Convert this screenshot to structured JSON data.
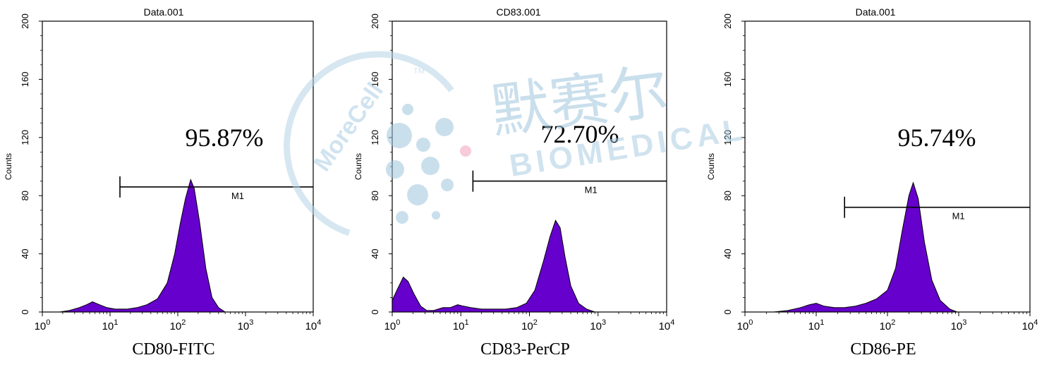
{
  "chart_data": [
    {
      "type": "area",
      "title": "Data.001",
      "xlabel": "CD80-FITC",
      "ylabel": "Counts",
      "x_scale": "log",
      "xlim": [
        1,
        10000
      ],
      "ylim": [
        0,
        200
      ],
      "x_ticks": [
        1,
        10,
        100,
        1000,
        10000
      ],
      "y_ticks": [
        0,
        40,
        80,
        120,
        160,
        200
      ],
      "marker": {
        "label": "M1",
        "start": 14,
        "end": 10000,
        "y": 86
      },
      "percent": "95.87%",
      "fill": "#6600cc",
      "series": [
        {
          "x": [
            1.8,
            2.5,
            3.5,
            4.5,
            5.5,
            7,
            9,
            12,
            18,
            25,
            35,
            50,
            70,
            90,
            110,
            130,
            155,
            175,
            210,
            260,
            320,
            400,
            500
          ],
          "y": [
            0,
            1,
            3,
            5,
            7,
            5,
            3,
            2,
            2,
            3,
            5,
            9,
            20,
            40,
            62,
            78,
            91,
            85,
            62,
            30,
            10,
            3,
            0
          ]
        }
      ]
    },
    {
      "type": "area",
      "title": "CD83.001",
      "xlabel": "CD83-PerCP",
      "ylabel": "Counts",
      "x_scale": "log",
      "xlim": [
        1,
        10000
      ],
      "ylim": [
        0,
        200
      ],
      "x_ticks": [
        1,
        10,
        100,
        1000,
        10000
      ],
      "y_ticks": [
        0,
        40,
        80,
        120,
        160,
        200
      ],
      "marker": {
        "label": "M1",
        "start": 15,
        "end": 10000,
        "y": 90
      },
      "percent": "72.70%",
      "fill": "#6600cc",
      "series": [
        {
          "x": [
            1,
            1.2,
            1.45,
            1.7,
            2.1,
            2.6,
            3.2,
            4,
            5.5,
            7,
            9,
            11,
            14,
            20,
            30,
            45,
            65,
            90,
            120,
            160,
            200,
            240,
            280,
            330,
            400,
            520,
            680,
            900
          ],
          "y": [
            8,
            16,
            24,
            21,
            12,
            4,
            1,
            1,
            3,
            3,
            5,
            4,
            3,
            2,
            2,
            2,
            3,
            6,
            15,
            35,
            52,
            63,
            58,
            38,
            18,
            6,
            2,
            0
          ]
        }
      ]
    },
    {
      "type": "area",
      "title": "Data.001",
      "xlabel": "CD86-PE",
      "ylabel": "Counts",
      "x_scale": "log",
      "xlim": [
        1,
        10000
      ],
      "ylim": [
        0,
        200
      ],
      "x_ticks": [
        1,
        10,
        100,
        1000,
        10000
      ],
      "y_ticks": [
        0,
        40,
        80,
        120,
        160,
        200
      ],
      "marker": {
        "label": "M1",
        "start": 25,
        "end": 10000,
        "y": 72
      },
      "percent": "95.74%",
      "fill": "#6600cc",
      "series": [
        {
          "x": [
            2.5,
            4,
            6,
            8,
            10,
            13,
            18,
            25,
            35,
            50,
            70,
            100,
            130,
            160,
            200,
            230,
            270,
            330,
            420,
            550,
            750,
            950
          ],
          "y": [
            0,
            1,
            3,
            5,
            6,
            4,
            3,
            3,
            4,
            6,
            9,
            15,
            30,
            55,
            80,
            89,
            78,
            48,
            22,
            8,
            2,
            0
          ]
        }
      ]
    }
  ],
  "watermark": {
    "brand": "MoreCell",
    "trademark": "TM",
    "chinese": "默赛尔",
    "subtitle": "BIOMEDICAL"
  }
}
